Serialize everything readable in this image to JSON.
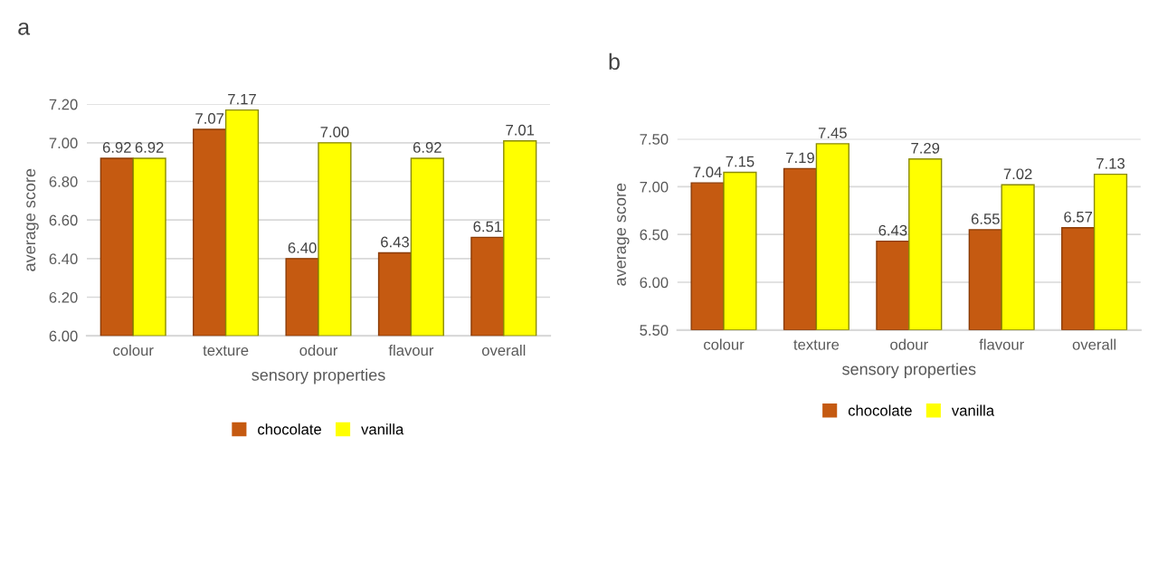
{
  "chart_data": [
    {
      "type": "bar",
      "title": "a",
      "xlabel": "sensory properties",
      "ylabel": "average score",
      "categories": [
        "colour",
        "texture",
        "odour",
        "flavour",
        "overall"
      ],
      "series": [
        {
          "name": "chocolate",
          "color": "#c55a11",
          "values": [
            6.92,
            7.07,
            6.4,
            6.43,
            6.51
          ]
        },
        {
          "name": "vanilla",
          "color": "#ffff00",
          "values": [
            6.92,
            7.17,
            7.0,
            6.92,
            7.01
          ]
        }
      ],
      "ylim": [
        6.0,
        7.2
      ],
      "yticks": [
        {
          "value": 6.0,
          "label": "6.00"
        },
        {
          "value": 6.2,
          "label": "6.20"
        },
        {
          "value": 6.4,
          "label": "6.40"
        },
        {
          "value": 6.6,
          "label": "6.60"
        },
        {
          "value": 6.8,
          "label": "6.80"
        },
        {
          "value": 7.0,
          "label": "7.00"
        },
        {
          "value": 7.2,
          "label": "7.20"
        }
      ],
      "value_labels": [
        [
          "6.92",
          "7.07",
          "6.40",
          "6.43",
          "6.51"
        ],
        [
          "6.92",
          "7.17",
          "7.00",
          "6.92",
          "7.01"
        ]
      ],
      "grid": "y",
      "legend": "bottom"
    },
    {
      "type": "bar",
      "title": "b",
      "xlabel": "sensory properties",
      "ylabel": "average score",
      "categories": [
        "colour",
        "texture",
        "odour",
        "flavour",
        "overall"
      ],
      "series": [
        {
          "name": "chocolate",
          "color": "#c55a11",
          "values": [
            7.04,
            7.19,
            6.43,
            6.55,
            6.57
          ]
        },
        {
          "name": "vanilla",
          "color": "#ffff00",
          "values": [
            7.15,
            7.45,
            7.29,
            7.02,
            7.13
          ]
        }
      ],
      "ylim": [
        5.5,
        7.5
      ],
      "yticks": [
        {
          "value": 5.5,
          "label": "5.50"
        },
        {
          "value": 6.0,
          "label": "6.00"
        },
        {
          "value": 6.5,
          "label": "6.50"
        },
        {
          "value": 7.0,
          "label": "7.00"
        },
        {
          "value": 7.5,
          "label": "7.50"
        }
      ],
      "value_labels": [
        [
          "7.04",
          "7.19",
          "6.43",
          "6.55",
          "6.57"
        ],
        [
          "7.15",
          "7.45",
          "7.29",
          "7.02",
          "7.13"
        ]
      ],
      "grid": "y",
      "legend": "bottom"
    }
  ]
}
